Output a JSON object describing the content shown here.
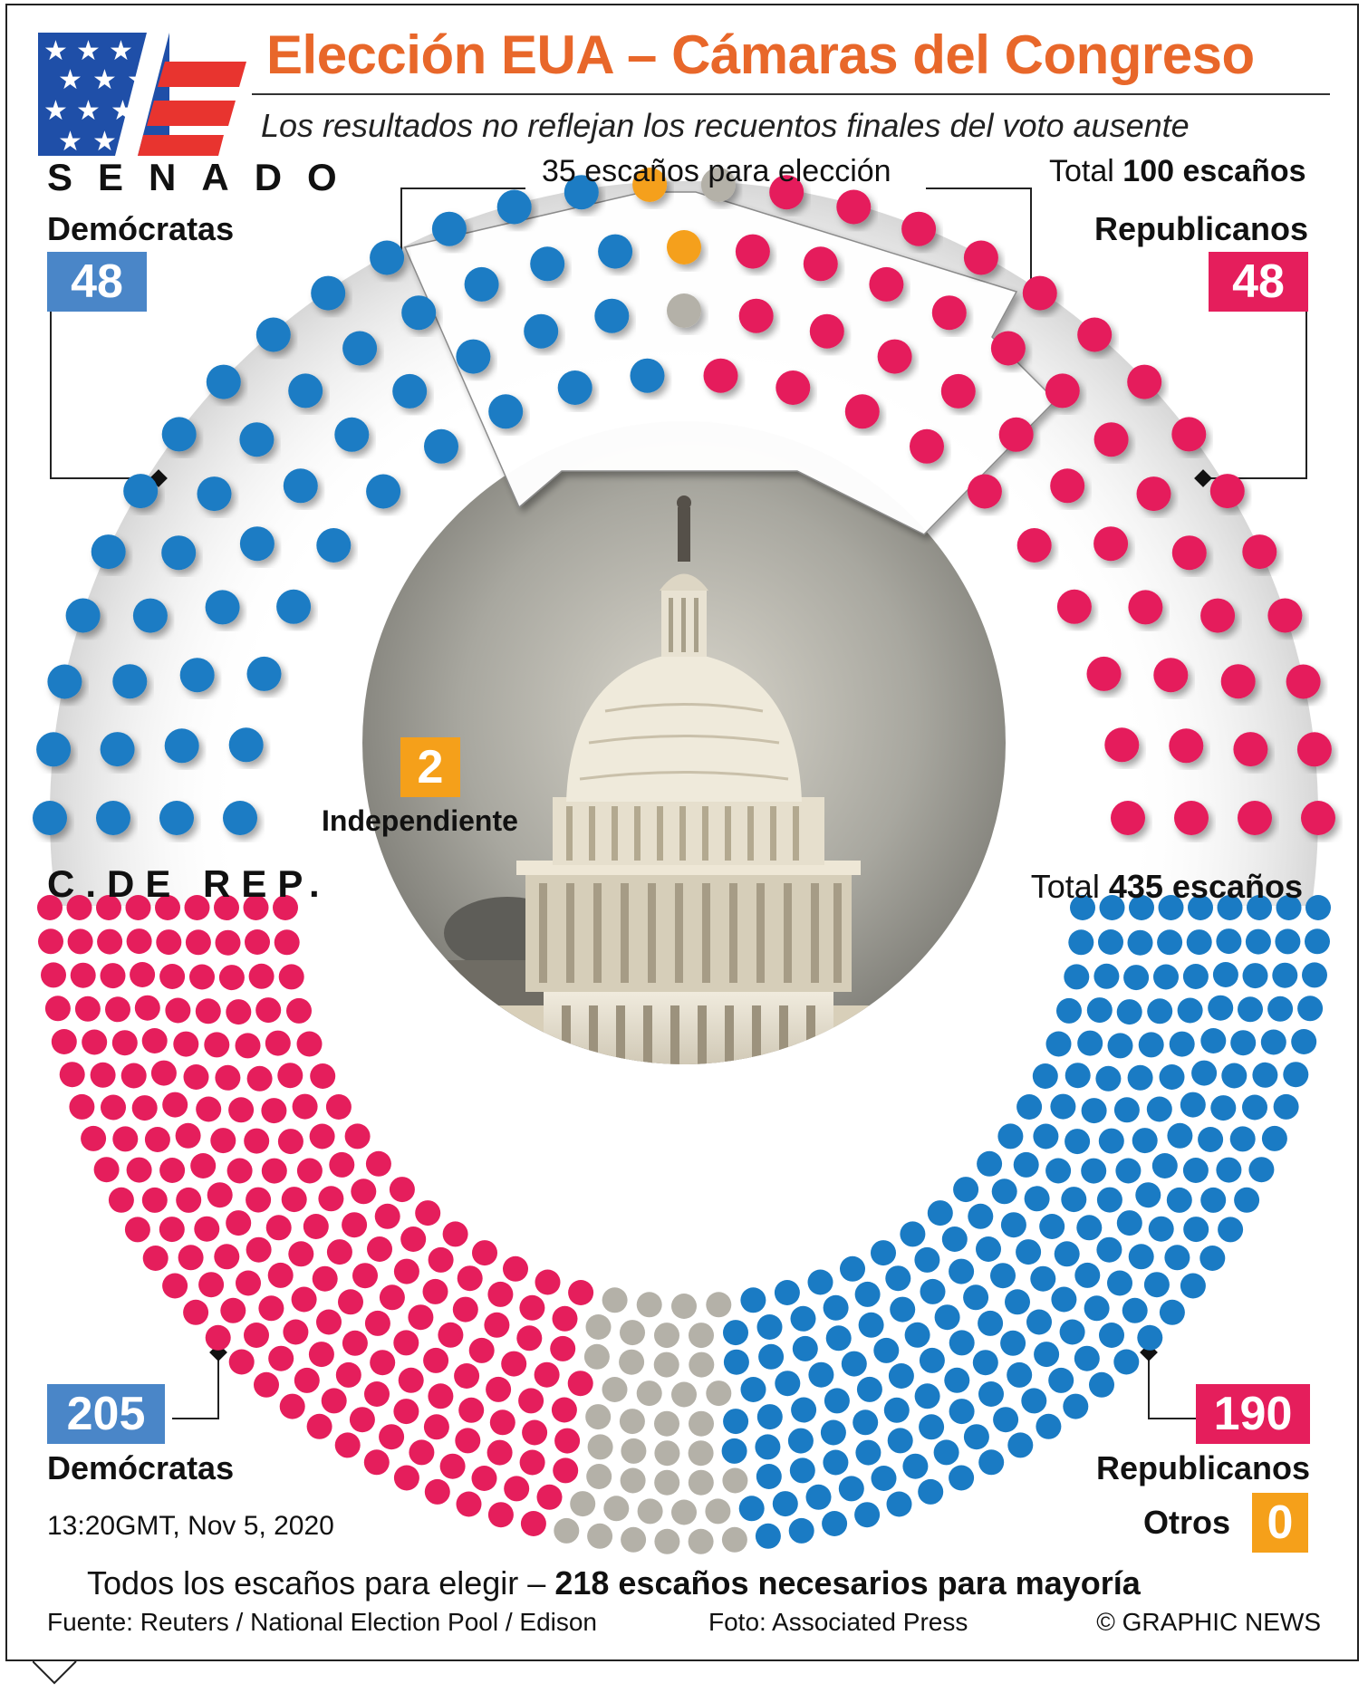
{
  "header": {
    "title": "Elección EUA – Cámaras del Congreso",
    "subtitle": "Los resultados no reflejan los recuentos finales del voto ausente"
  },
  "colors": {
    "democrat": "#1a7bc4",
    "republican": "#e51e5c",
    "independent": "#f5a01a",
    "undecided": "#b4b1a8",
    "title": "#e8672a",
    "dem_box": "#4a86c8",
    "rep_box": "#e51e5c",
    "other_box": "#f5a01a"
  },
  "senate": {
    "chamber_label": "SENADO",
    "up_for_election": "35 escaños para elección",
    "total_label": "Total",
    "total_value": "100 escaños",
    "dem_label": "Demócratas",
    "dem_count": "48",
    "rep_label": "Republicanos",
    "rep_count": "48",
    "ind_label": "Independiente",
    "ind_count": "2"
  },
  "house": {
    "chamber_label": "C.DE REP.",
    "total_label": "Total",
    "total_value": "435 escaños",
    "dem_label": "Demócratas",
    "dem_count": "205",
    "rep_label": "Republicanos",
    "rep_count": "190",
    "other_label": "Otros",
    "other_count": "0"
  },
  "notes": {
    "timestamp": "13:20GMT, Nov 5, 2020",
    "all_seats": "Todos los escaños para elegir –",
    "majority": "218 escaños necesarios para mayoría"
  },
  "footer": {
    "source": "Fuente: Reuters / National Election Pool / Edison",
    "photo": "Foto: Associated Press",
    "credit": "© GRAPHIC NEWS"
  },
  "chart_data": [
    {
      "type": "parliament",
      "title": "SENADO",
      "total": 100,
      "series": [
        {
          "name": "Demócratas",
          "value": 48
        },
        {
          "name": "Independiente",
          "value": 2
        },
        {
          "name": "Republicanos",
          "value": 48
        }
      ],
      "undecided": 2,
      "up_for_election": 35
    },
    {
      "type": "parliament",
      "title": "C.DE REP.",
      "total": 435,
      "series": [
        {
          "name": "Demócratas",
          "value": 205
        },
        {
          "name": "Republicanos",
          "value": 190
        },
        {
          "name": "Otros",
          "value": 0
        }
      ],
      "undecided": 40,
      "majority": 218
    }
  ]
}
